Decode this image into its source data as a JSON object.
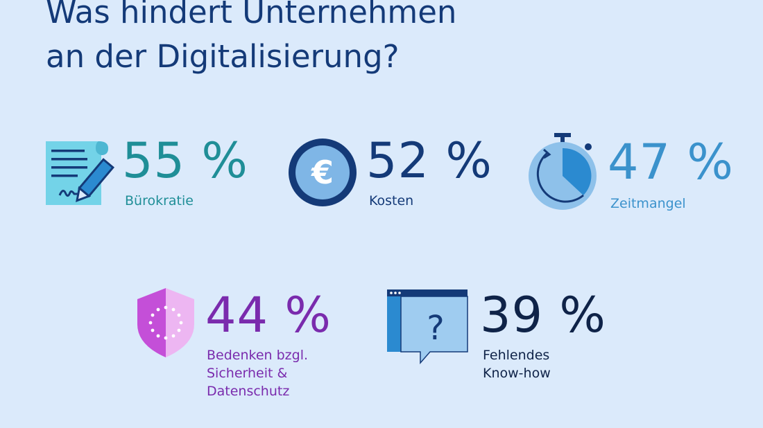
{
  "header": {
    "title_line1": "Was hindert Unternehmen",
    "title_line2": "an der Digitalisierung?"
  },
  "colors": {
    "background": "#dbeafb",
    "title": "#143a78",
    "teal": "#1f8e97",
    "navy": "#143a78",
    "light_blue": "#3b92cc",
    "purple": "#7a2bad",
    "dark_navy": "#0f2348"
  },
  "chart_data": {
    "type": "infographic",
    "title": "Was hindert Unternehmen an der Digitalisierung?",
    "unit": "%",
    "items": [
      {
        "value": 55,
        "value_label": "55 %",
        "label": "Bürokratie",
        "icon": "document-pen-icon"
      },
      {
        "value": 52,
        "value_label": "52 %",
        "label": "Kosten",
        "icon": "euro-coin-icon"
      },
      {
        "value": 47,
        "value_label": "47 %",
        "label": "Zeitmangel",
        "icon": "stopwatch-icon"
      },
      {
        "value": 44,
        "value_label": "44 %",
        "label_lines": [
          "Bedenken bzgl.",
          "Sicherheit &",
          "Datenschutz"
        ],
        "icon": "eu-shield-icon"
      },
      {
        "value": 39,
        "value_label": "39 %",
        "label_lines": [
          "Fehlendes",
          "Know-how"
        ],
        "icon": "question-window-icon"
      }
    ]
  }
}
